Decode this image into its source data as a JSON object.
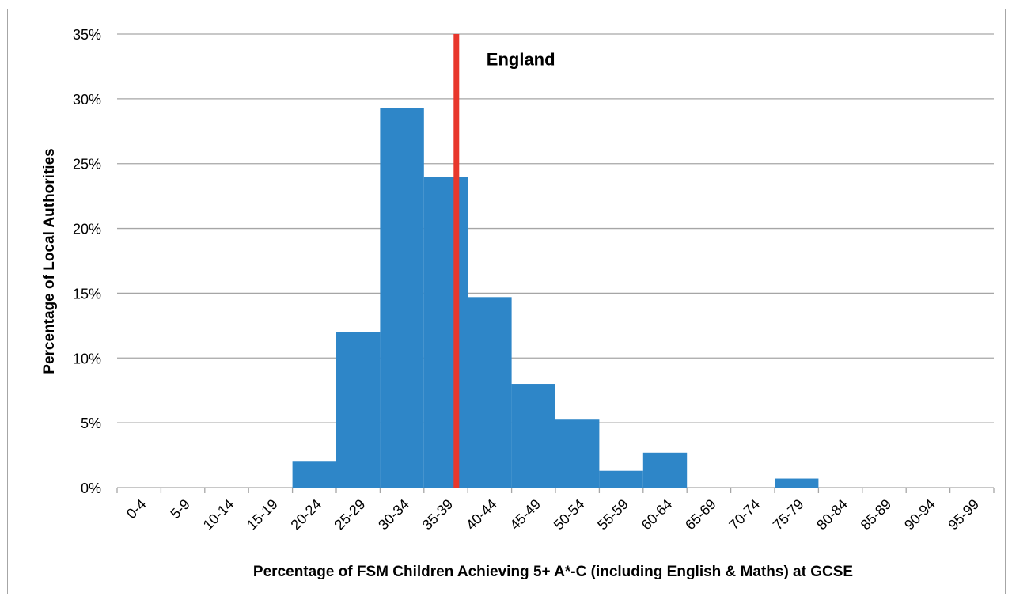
{
  "chart_data": {
    "type": "bar",
    "title": "",
    "xlabel": "Percentage of FSM Children Achieving 5+ A*-C (including English & Maths) at GCSE",
    "ylabel": "Percentage of Local Authorities",
    "categories": [
      "0-4",
      "5-9",
      "10-14",
      "15-19",
      "20-24",
      "25-29",
      "30-34",
      "35-39",
      "40-44",
      "45-49",
      "50-54",
      "55-59",
      "60-64",
      "65-69",
      "70-74",
      "75-79",
      "80-84",
      "85-89",
      "90-94",
      "95-99"
    ],
    "values": [
      0,
      0,
      0,
      0,
      2.0,
      12.0,
      29.3,
      24.0,
      14.7,
      8.0,
      5.3,
      1.3,
      2.7,
      0,
      0,
      0.7,
      0,
      0,
      0,
      0
    ],
    "ylim": [
      0,
      35
    ],
    "yticks": [
      "0%",
      "5%",
      "10%",
      "15%",
      "20%",
      "25%",
      "30%",
      "35%"
    ],
    "ytick_values": [
      0,
      5,
      10,
      15,
      20,
      25,
      30,
      35
    ],
    "grid": true,
    "bar_color": "#2e86c8",
    "reference_line": {
      "label": "England",
      "x_value": 38.7,
      "color": "#e8372c"
    }
  }
}
